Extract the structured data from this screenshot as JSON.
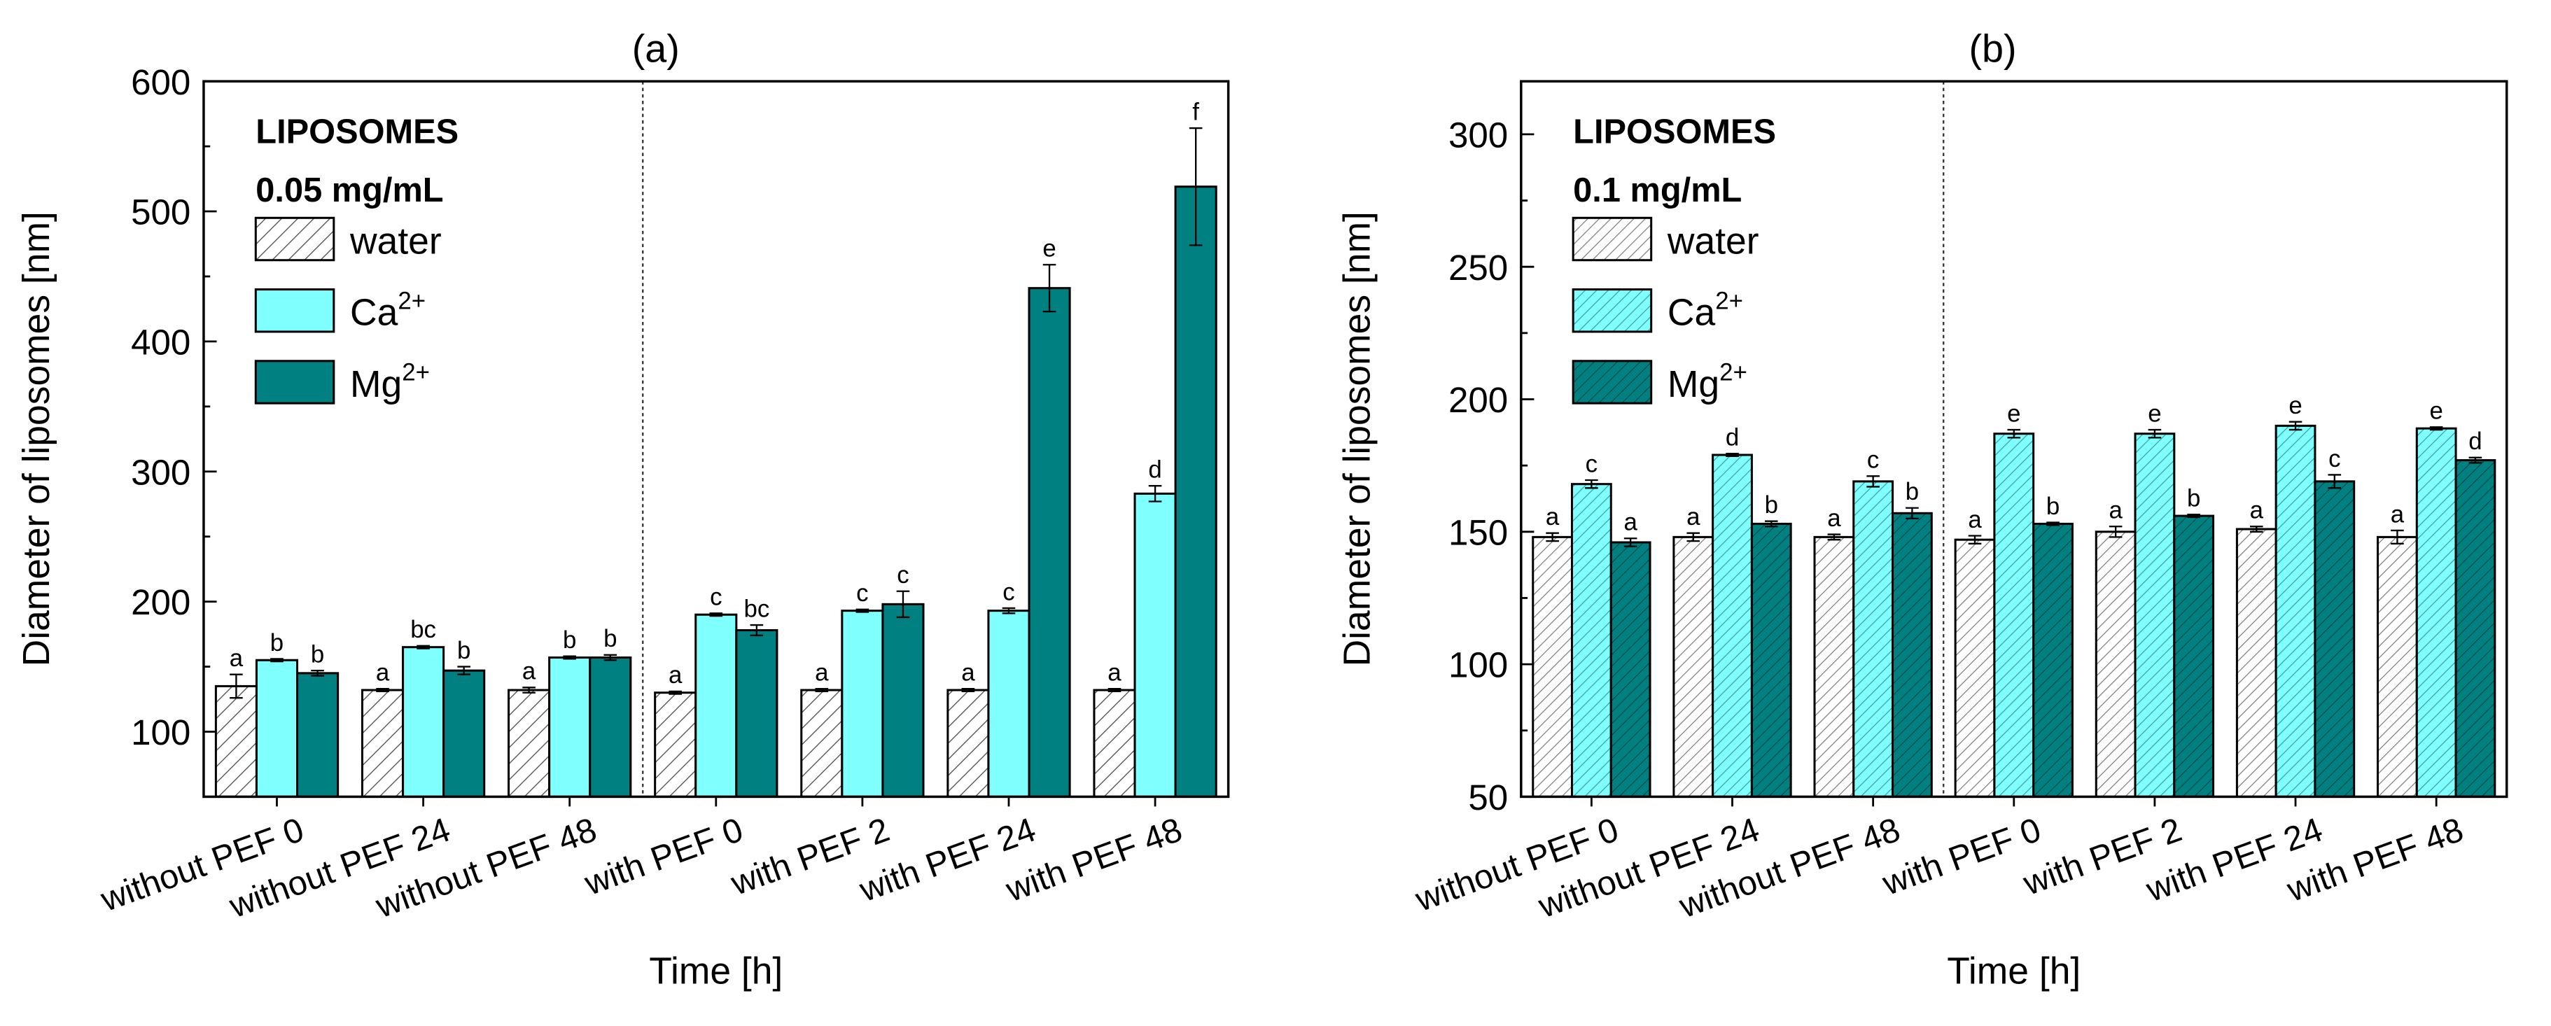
{
  "colors": {
    "water": "#ffffff",
    "ca": "#80ffff",
    "mg": "#008080",
    "axis": "#000000"
  },
  "chart_data": [
    {
      "type": "bar",
      "title": "(a)",
      "legend_title": [
        "LIPOSOMES",
        "0.05 mg/mL"
      ],
      "legend_placement": "top-left",
      "xlabel": "Time [h]",
      "ylabel": "Diameter of liposomes [nm]",
      "ylim": [
        50,
        600
      ],
      "yticks": [
        100,
        200,
        300,
        400,
        500,
        600
      ],
      "hatched": [
        "water"
      ],
      "categories": [
        "without PEF 0",
        "without PEF 24",
        "without PEF 48",
        "with PEF 0",
        "with PEF 2",
        "with PEF 24",
        "with PEF 48"
      ],
      "separator_after": 3,
      "series": [
        {
          "key": "water",
          "name": "water",
          "sup": "",
          "values": [
            135,
            132,
            132,
            130,
            132,
            132,
            132
          ],
          "errors": [
            9,
            1,
            2,
            1,
            1,
            1,
            1
          ],
          "letters": [
            "a",
            "a",
            "a",
            "a",
            "a",
            "a",
            "a"
          ]
        },
        {
          "key": "ca",
          "name": "Ca",
          "sup": "2+",
          "values": [
            155,
            165,
            157,
            190,
            193,
            193,
            283
          ],
          "errors": [
            1,
            1,
            1,
            1,
            1,
            2,
            6
          ],
          "letters": [
            "b",
            "bc",
            "b",
            "c",
            "c",
            "c",
            "d"
          ]
        },
        {
          "key": "mg",
          "name": "Mg",
          "sup": "2+",
          "values": [
            145,
            147,
            157,
            178,
            198,
            441,
            519
          ],
          "errors": [
            2,
            3,
            2,
            4,
            10,
            18,
            45
          ],
          "letters": [
            "b",
            "b",
            "b",
            "bc",
            "c",
            "e",
            "f"
          ]
        }
      ]
    },
    {
      "type": "bar",
      "title": "(b)",
      "legend_title": [
        "LIPOSOMES",
        "0.1 mg/mL"
      ],
      "legend_placement": "top-left",
      "xlabel": "Time [h]",
      "ylabel": "Diameter of liposomes [nm]",
      "ylim": [
        50,
        320
      ],
      "yticks": [
        50,
        100,
        150,
        200,
        250,
        300
      ],
      "hatched": [
        "water",
        "ca",
        "mg"
      ],
      "categories": [
        "without PEF 0",
        "without PEF 24",
        "without PEF 48",
        "with PEF 0",
        "with PEF 2",
        "with PEF 24",
        "with PEF 48"
      ],
      "separator_after": 3,
      "series": [
        {
          "key": "water",
          "name": "water",
          "sup": "",
          "values": [
            148,
            148,
            148,
            147,
            150,
            151,
            148
          ],
          "errors": [
            1.5,
            1.5,
            1,
            1.5,
            2,
            1,
            2.5
          ],
          "letters": [
            "a",
            "a",
            "a",
            "a",
            "a",
            "a",
            "a"
          ]
        },
        {
          "key": "ca",
          "name": "Ca",
          "sup": "2+",
          "values": [
            168,
            179,
            169,
            187,
            187,
            190,
            189
          ],
          "errors": [
            1.5,
            0.5,
            2,
            1.5,
            1.5,
            1.5,
            0.5
          ],
          "letters": [
            "c",
            "d",
            "c",
            "e",
            "e",
            "e",
            "e"
          ]
        },
        {
          "key": "mg",
          "name": "Mg",
          "sup": "2+",
          "values": [
            146,
            153,
            157,
            153,
            156,
            169,
            177
          ],
          "errors": [
            1.5,
            1,
            2,
            0.5,
            0.5,
            2.5,
            1
          ],
          "letters": [
            "a",
            "b",
            "b",
            "b",
            "b",
            "c",
            "d"
          ]
        }
      ]
    }
  ]
}
